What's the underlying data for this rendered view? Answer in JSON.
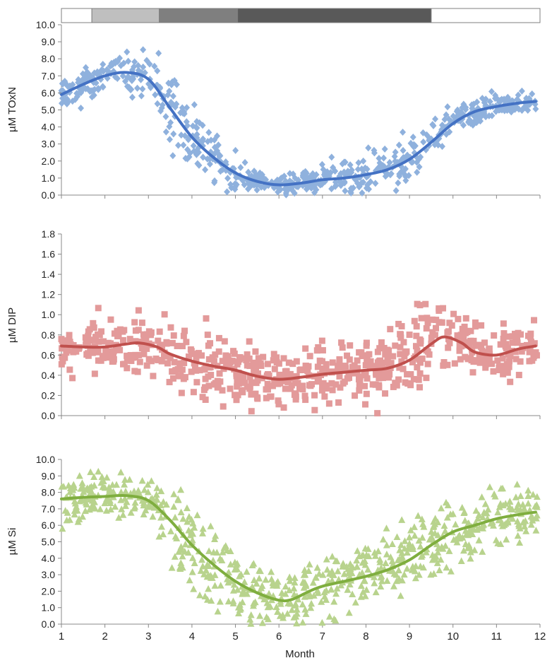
{
  "colors": {
    "toxn_points": "#8fb1dd",
    "toxn_line": "#4472c4",
    "dip_points": "#e39a9a",
    "dip_line": "#c0504d",
    "si_points": "#b8d38d",
    "si_line": "#7fae3f",
    "axis": "#888888"
  },
  "season_bar": [
    {
      "from": 1.0,
      "to": 1.7,
      "color": "#ffffff"
    },
    {
      "from": 1.7,
      "to": 3.25,
      "color": "#bfbfbf"
    },
    {
      "from": 3.25,
      "to": 5.05,
      "color": "#7f7f7f"
    },
    {
      "from": 5.05,
      "to": 9.5,
      "color": "#595959"
    },
    {
      "from": 9.5,
      "to": 12.0,
      "color": "#ffffff"
    }
  ],
  "chart_data": [
    {
      "type": "scatter",
      "marker": "diamond",
      "ylabel": "µM TOxN",
      "ylim": [
        0,
        10
      ],
      "yticks": [
        "0.0",
        "1.0",
        "2.0",
        "3.0",
        "4.0",
        "5.0",
        "6.0",
        "7.0",
        "8.0",
        "9.0",
        "10.0"
      ],
      "trend": [
        [
          1.0,
          5.9
        ],
        [
          1.5,
          6.5
        ],
        [
          2.0,
          7.0
        ],
        [
          2.5,
          7.2
        ],
        [
          3.0,
          6.8
        ],
        [
          3.5,
          5.1
        ],
        [
          4.0,
          3.4
        ],
        [
          4.5,
          2.2
        ],
        [
          5.0,
          1.3
        ],
        [
          5.5,
          0.8
        ],
        [
          6.0,
          0.6
        ],
        [
          6.5,
          0.7
        ],
        [
          7.0,
          0.9
        ],
        [
          7.5,
          1.0
        ],
        [
          8.0,
          1.2
        ],
        [
          8.5,
          1.5
        ],
        [
          9.0,
          2.1
        ],
        [
          9.5,
          3.1
        ],
        [
          10.0,
          4.2
        ],
        [
          10.5,
          4.9
        ],
        [
          11.0,
          5.2
        ],
        [
          11.5,
          5.4
        ],
        [
          11.9,
          5.5
        ]
      ],
      "spread": [
        [
          1.0,
          0.9
        ],
        [
          2.5,
          1.2
        ],
        [
          3.0,
          1.6
        ],
        [
          3.6,
          2.6
        ],
        [
          4.5,
          2.0
        ],
        [
          5.5,
          0.5
        ],
        [
          6.5,
          0.7
        ],
        [
          7.5,
          1.0
        ],
        [
          8.5,
          1.2
        ],
        [
          9.0,
          1.8
        ],
        [
          9.5,
          1.3
        ],
        [
          10.0,
          0.8
        ],
        [
          11.9,
          0.5
        ]
      ]
    },
    {
      "type": "scatter",
      "marker": "square",
      "ylabel": "µM DIP",
      "ylim": [
        0,
        1.8
      ],
      "yticks": [
        "0.0",
        "0.2",
        "0.4",
        "0.6",
        "0.8",
        "1.0",
        "1.2",
        "1.4",
        "1.6",
        "1.8"
      ],
      "trend": [
        [
          1.0,
          0.69
        ],
        [
          1.5,
          0.68
        ],
        [
          2.0,
          0.68
        ],
        [
          2.5,
          0.71
        ],
        [
          2.8,
          0.72
        ],
        [
          3.2,
          0.68
        ],
        [
          3.5,
          0.61
        ],
        [
          4.0,
          0.54
        ],
        [
          4.5,
          0.49
        ],
        [
          5.0,
          0.45
        ],
        [
          5.5,
          0.39
        ],
        [
          6.0,
          0.36
        ],
        [
          6.5,
          0.38
        ],
        [
          7.0,
          0.41
        ],
        [
          7.5,
          0.43
        ],
        [
          8.0,
          0.45
        ],
        [
          8.5,
          0.47
        ],
        [
          9.0,
          0.55
        ],
        [
          9.5,
          0.71
        ],
        [
          9.8,
          0.78
        ],
        [
          10.2,
          0.72
        ],
        [
          10.5,
          0.63
        ],
        [
          11.0,
          0.6
        ],
        [
          11.5,
          0.66
        ],
        [
          11.9,
          0.69
        ]
      ],
      "spread": [
        [
          1.0,
          0.25
        ],
        [
          3.0,
          0.25
        ],
        [
          4.0,
          0.33
        ],
        [
          6.0,
          0.25
        ],
        [
          8.0,
          0.3
        ],
        [
          9.5,
          0.4
        ],
        [
          10.5,
          0.25
        ],
        [
          11.9,
          0.25
        ]
      ]
    },
    {
      "type": "scatter",
      "marker": "triangle",
      "xlabel": "Month",
      "ylabel": "µM Si",
      "xlim": [
        1,
        12
      ],
      "xticks": [
        "1",
        "2",
        "3",
        "4",
        "5",
        "6",
        "7",
        "8",
        "9",
        "10",
        "11",
        "12"
      ],
      "ylim": [
        0,
        10
      ],
      "yticks": [
        "0.0",
        "1.0",
        "2.0",
        "3.0",
        "4.0",
        "5.0",
        "6.0",
        "7.0",
        "8.0",
        "9.0",
        "10.0"
      ],
      "trend": [
        [
          1.0,
          7.6
        ],
        [
          1.5,
          7.7
        ],
        [
          2.0,
          7.75
        ],
        [
          2.5,
          7.8
        ],
        [
          3.0,
          7.5
        ],
        [
          3.5,
          6.3
        ],
        [
          4.0,
          4.8
        ],
        [
          4.5,
          3.6
        ],
        [
          5.0,
          2.6
        ],
        [
          5.5,
          1.9
        ],
        [
          6.0,
          1.45
        ],
        [
          6.3,
          1.5
        ],
        [
          6.7,
          2.0
        ],
        [
          7.0,
          2.3
        ],
        [
          7.5,
          2.6
        ],
        [
          8.0,
          2.9
        ],
        [
          8.5,
          3.3
        ],
        [
          9.0,
          3.9
        ],
        [
          9.5,
          4.8
        ],
        [
          10.0,
          5.6
        ],
        [
          10.5,
          6.0
        ],
        [
          11.0,
          6.4
        ],
        [
          11.5,
          6.65
        ],
        [
          11.9,
          6.8
        ]
      ],
      "spread": [
        [
          1.0,
          1.4
        ],
        [
          3.0,
          1.2
        ],
        [
          4.0,
          3.0
        ],
        [
          5.0,
          2.4
        ],
        [
          6.0,
          1.4
        ],
        [
          7.0,
          2.0
        ],
        [
          8.0,
          1.8
        ],
        [
          9.0,
          2.2
        ],
        [
          10.0,
          1.8
        ],
        [
          11.0,
          1.8
        ],
        [
          11.9,
          1.4
        ]
      ]
    }
  ]
}
